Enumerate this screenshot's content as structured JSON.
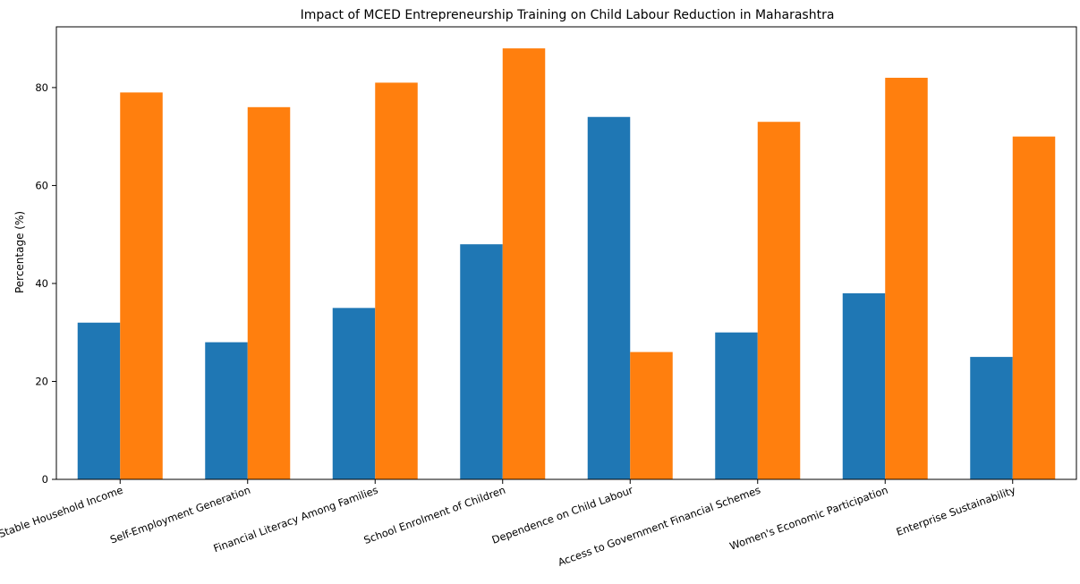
{
  "chart_data": {
    "type": "bar",
    "title": "Impact of MCED Entrepreneurship Training on Child Labour Reduction in Maharashtra",
    "xlabel": "",
    "ylabel": "Percentage (%)",
    "categories": [
      "Stable Household Income",
      "Self-Employment Generation",
      "Financial Literacy Among Families",
      "School Enrolment of Children",
      "Dependence on Child Labour",
      "Access to Government Financial Schemes",
      "Women's Economic Participation",
      "Enterprise Sustainability"
    ],
    "series": [
      {
        "values": [
          32,
          28,
          35,
          48,
          74,
          30,
          38,
          25
        ],
        "color": "#1f77b4"
      },
      {
        "values": [
          79,
          76,
          81,
          88,
          26,
          73,
          82,
          70
        ],
        "color": "#ff7f0e"
      }
    ],
    "ylim": [
      0,
      92.4
    ],
    "yticks": [
      0,
      20,
      40,
      60,
      80
    ],
    "grid": false,
    "legend": "none"
  }
}
